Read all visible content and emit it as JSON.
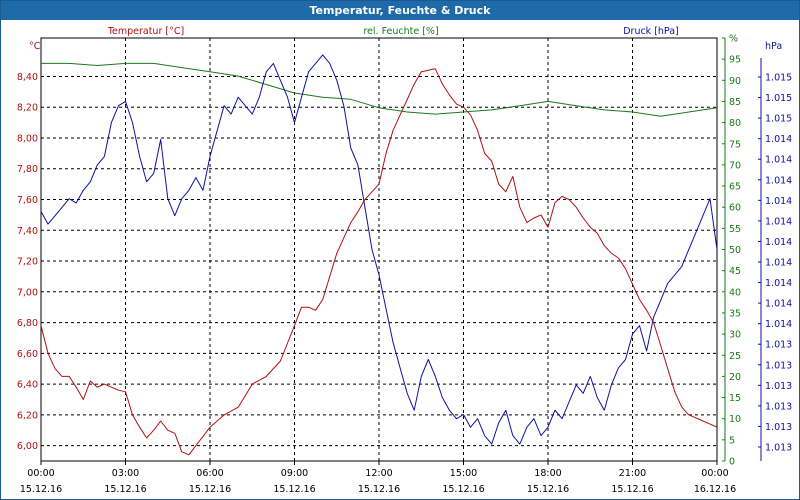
{
  "title": "Temperatur, Feuchte & Druck",
  "colors": {
    "temperature": "#b01010",
    "humidity": "#1a7a1a",
    "pressure": "#1010a0",
    "grid": "#000000",
    "titlebar": "#1e6aa8"
  },
  "chart_data": {
    "type": "line",
    "title": "Temperatur, Feuchte & Druck",
    "grid": true,
    "x_ticks": [
      {
        "time": "00:00",
        "date": "15.12.16"
      },
      {
        "time": "03:00",
        "date": "15.12.16"
      },
      {
        "time": "06:00",
        "date": "15.12.16"
      },
      {
        "time": "09:00",
        "date": "15.12.16"
      },
      {
        "time": "12:00",
        "date": "15.12.16"
      },
      {
        "time": "15:00",
        "date": "15.12.16"
      },
      {
        "time": "18:00",
        "date": "15.12.16"
      },
      {
        "time": "21:00",
        "date": "15.12.16"
      },
      {
        "time": "00:00",
        "date": "16.12.16"
      }
    ],
    "x_range_hours": [
      0,
      24
    ],
    "axes": {
      "temperature": {
        "unit_label": "°C",
        "header": "Temperatur [°C]",
        "range": [
          5.9,
          8.65
        ],
        "tick_values": [
          6.0,
          6.2,
          6.4,
          6.6,
          6.8,
          7.0,
          7.2,
          7.4,
          7.6,
          7.8,
          8.0,
          8.2,
          8.4
        ],
        "tick_labels": [
          "6,00",
          "6,20",
          "6,40",
          "6,60",
          "6,80",
          "7,00",
          "7,20",
          "7,40",
          "7,60",
          "7,80",
          "8,00",
          "8,20",
          "8,40"
        ]
      },
      "humidity": {
        "unit_label": "%",
        "header": "rel. Feuchte [%]",
        "range": [
          0,
          100
        ],
        "tick_values": [
          0,
          5,
          10,
          15,
          20,
          25,
          30,
          35,
          40,
          45,
          50,
          55,
          60,
          65,
          70,
          75,
          80,
          85,
          90,
          95,
          100
        ],
        "tick_labels": [
          "0",
          "5",
          "10",
          "15",
          "20",
          "25",
          "30",
          "35",
          "40",
          "45",
          "50",
          "55",
          "60",
          "65",
          "70",
          "75",
          "80",
          "85",
          "90",
          "95",
          "%"
        ]
      },
      "pressure": {
        "unit_label": "hPa",
        "header": "Druck [hPa]",
        "tick_labels": [
          "1.013",
          "1.013",
          "1.013",
          "1.013",
          "1.013",
          "1.013",
          "1.014",
          "1.014",
          "1.014",
          "1.014",
          "1.014",
          "1.014",
          "1.014",
          "1.014",
          "1.014",
          "1.014",
          "1.015",
          "1.015",
          "1.015"
        ]
      }
    },
    "series": [
      {
        "name": "Temperatur [°C]",
        "axis": "temperature",
        "x": [
          0,
          0.25,
          0.5,
          0.75,
          1.0,
          1.25,
          1.5,
          1.75,
          2.0,
          2.25,
          2.5,
          2.75,
          3.0,
          3.25,
          3.5,
          3.75,
          4.0,
          4.25,
          4.5,
          4.75,
          5.0,
          5.25,
          5.5,
          5.75,
          6.0,
          6.5,
          7.0,
          7.5,
          8.0,
          8.5,
          9.0,
          9.25,
          9.5,
          9.75,
          10.0,
          10.5,
          11.0,
          11.25,
          11.5,
          11.75,
          12.0,
          12.25,
          12.5,
          12.75,
          13.0,
          13.25,
          13.5,
          13.75,
          14.0,
          14.25,
          14.5,
          14.75,
          15.0,
          15.25,
          15.5,
          15.75,
          16.0,
          16.25,
          16.5,
          16.75,
          17.0,
          17.25,
          17.5,
          17.75,
          18.0,
          18.25,
          18.5,
          18.75,
          19.0,
          19.25,
          19.5,
          19.75,
          20.0,
          20.25,
          20.5,
          20.75,
          21.0,
          21.25,
          21.5,
          21.75,
          22.0,
          22.25,
          22.5,
          22.75,
          23.0,
          23.25,
          23.5,
          23.75,
          24.0
        ],
        "y": [
          6.78,
          6.6,
          6.5,
          6.45,
          6.45,
          6.38,
          6.3,
          6.42,
          6.38,
          6.4,
          6.38,
          6.36,
          6.35,
          6.2,
          6.12,
          6.05,
          6.1,
          6.16,
          6.1,
          6.08,
          5.96,
          5.94,
          6.0,
          6.06,
          6.12,
          6.2,
          6.25,
          6.4,
          6.45,
          6.55,
          6.78,
          6.9,
          6.9,
          6.88,
          6.95,
          7.25,
          7.45,
          7.52,
          7.6,
          7.65,
          7.7,
          7.9,
          8.05,
          8.15,
          8.25,
          8.35,
          8.43,
          8.44,
          8.45,
          8.35,
          8.28,
          8.22,
          8.2,
          8.15,
          8.05,
          7.9,
          7.85,
          7.7,
          7.65,
          7.75,
          7.55,
          7.45,
          7.48,
          7.5,
          7.42,
          7.58,
          7.62,
          7.6,
          7.55,
          7.48,
          7.42,
          7.38,
          7.3,
          7.25,
          7.22,
          7.15,
          7.05,
          6.95,
          6.88,
          6.8,
          6.65,
          6.5,
          6.35,
          6.25,
          6.2,
          6.18,
          6.16,
          6.14,
          6.12
        ]
      },
      {
        "name": "rel. Feuchte [%]",
        "axis": "humidity",
        "x": [
          0,
          1,
          2,
          3,
          4,
          5,
          6,
          7,
          8,
          9,
          10,
          11,
          12,
          13,
          14,
          15,
          16,
          17,
          18,
          19,
          20,
          21,
          22,
          23,
          24
        ],
        "y": [
          94,
          94,
          93.5,
          94,
          94,
          93,
          92,
          91,
          89,
          87,
          86,
          85.5,
          83.5,
          82.5,
          82,
          82.5,
          83,
          84,
          85,
          84,
          83,
          82.5,
          81.5,
          82.5,
          83.5
        ]
      },
      {
        "name": "Druck [hPa]",
        "axis": "pressure",
        "x": [
          0,
          0.25,
          0.5,
          0.75,
          1.0,
          1.25,
          1.5,
          1.75,
          2.0,
          2.25,
          2.5,
          2.75,
          3.0,
          3.25,
          3.5,
          3.75,
          4.0,
          4.25,
          4.5,
          4.75,
          5.0,
          5.25,
          5.5,
          5.75,
          6.0,
          6.25,
          6.5,
          6.75,
          7.0,
          7.25,
          7.5,
          7.75,
          8.0,
          8.25,
          8.5,
          8.75,
          9.0,
          9.25,
          9.5,
          9.75,
          10.0,
          10.25,
          10.5,
          10.75,
          11.0,
          11.25,
          11.5,
          11.75,
          12.0,
          12.25,
          12.5,
          12.75,
          13.0,
          13.25,
          13.5,
          13.75,
          14.0,
          14.25,
          14.5,
          14.75,
          15.0,
          15.25,
          15.5,
          15.75,
          16.0,
          16.25,
          16.5,
          16.75,
          17.0,
          17.25,
          17.5,
          17.75,
          18.0,
          18.25,
          18.5,
          18.75,
          19.0,
          19.25,
          19.5,
          19.75,
          20.0,
          20.25,
          20.5,
          20.75,
          21.0,
          21.25,
          21.5,
          21.75,
          22.0,
          22.25,
          22.5,
          22.75,
          23.0,
          23.25,
          23.5,
          23.75,
          24.0
        ],
        "y": [
          0.59,
          0.56,
          0.58,
          0.6,
          0.62,
          0.61,
          0.64,
          0.66,
          0.7,
          0.72,
          0.8,
          0.84,
          0.85,
          0.8,
          0.72,
          0.66,
          0.68,
          0.76,
          0.62,
          0.58,
          0.62,
          0.64,
          0.67,
          0.64,
          0.72,
          0.78,
          0.84,
          0.82,
          0.86,
          0.84,
          0.82,
          0.86,
          0.92,
          0.94,
          0.9,
          0.86,
          0.8,
          0.86,
          0.92,
          0.94,
          0.96,
          0.94,
          0.9,
          0.84,
          0.74,
          0.7,
          0.6,
          0.5,
          0.44,
          0.36,
          0.28,
          0.22,
          0.16,
          0.12,
          0.2,
          0.24,
          0.2,
          0.15,
          0.12,
          0.1,
          0.11,
          0.08,
          0.1,
          0.06,
          0.04,
          0.09,
          0.12,
          0.06,
          0.04,
          0.08,
          0.1,
          0.06,
          0.08,
          0.12,
          0.1,
          0.14,
          0.18,
          0.16,
          0.2,
          0.15,
          0.12,
          0.18,
          0.22,
          0.24,
          0.3,
          0.32,
          0.26,
          0.34,
          0.38,
          0.42,
          0.44,
          0.46,
          0.5,
          0.54,
          0.58,
          0.62,
          0.5
        ]
      }
    ]
  }
}
